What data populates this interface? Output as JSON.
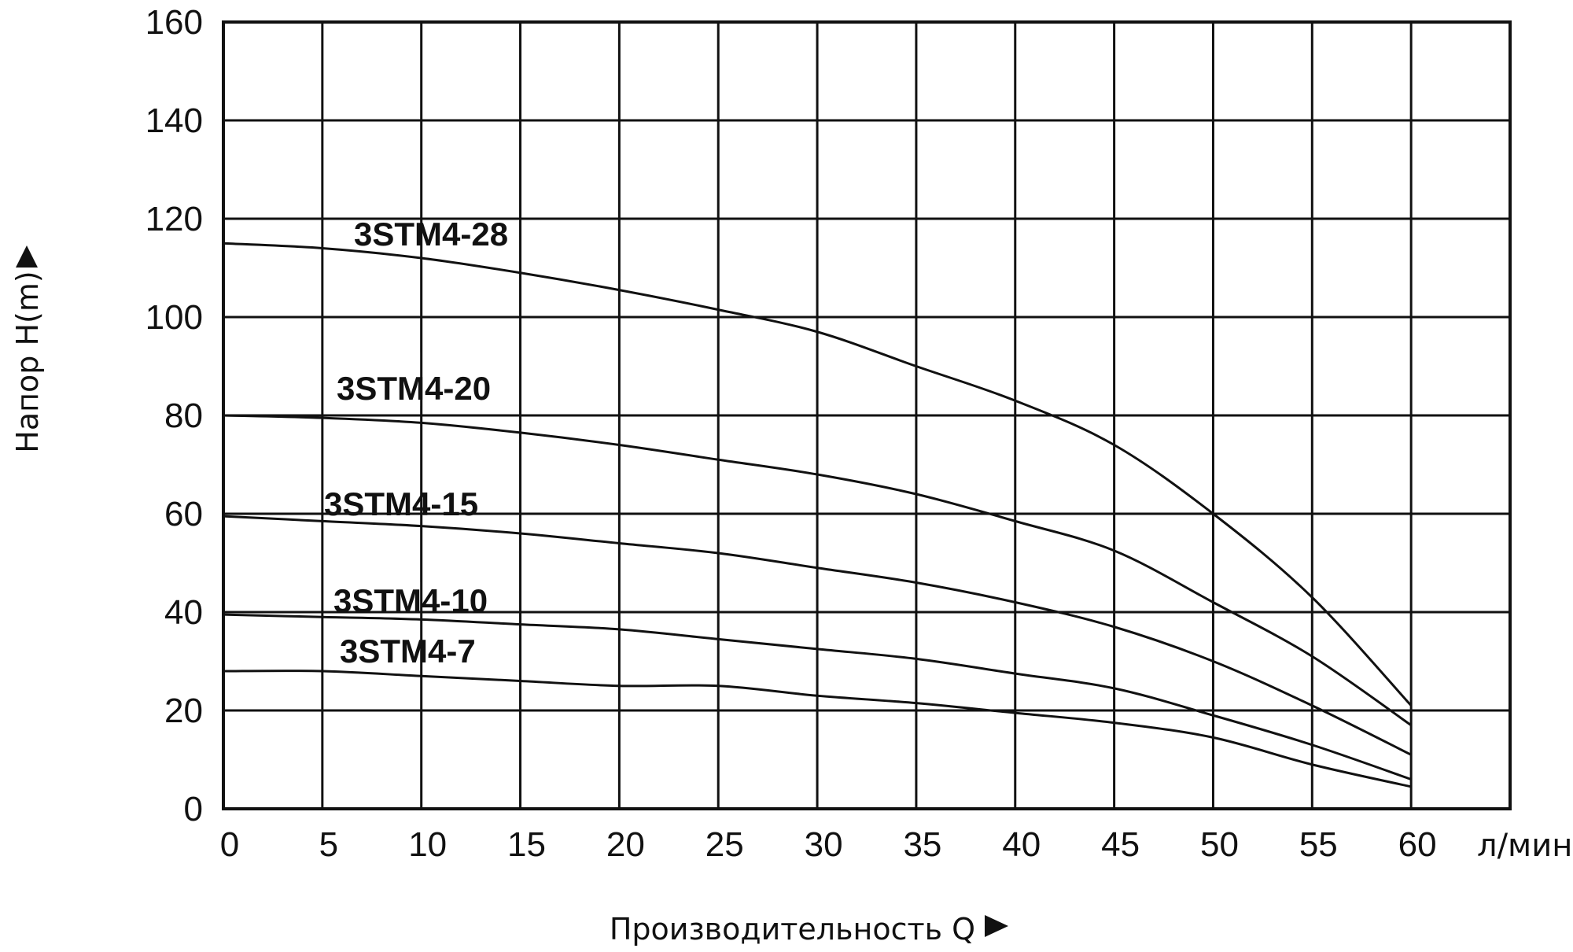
{
  "chart_data": {
    "type": "line",
    "title": "",
    "xlabel": "Производительность Q",
    "ylabel": "Напор H(m)",
    "x_unit": "л/мин",
    "xlim": [
      0,
      65
    ],
    "ylim": [
      0,
      160
    ],
    "x_ticks": [
      0,
      5,
      10,
      15,
      20,
      25,
      30,
      35,
      40,
      45,
      50,
      55,
      60
    ],
    "y_ticks": [
      0,
      20,
      40,
      60,
      80,
      100,
      120,
      140,
      160
    ],
    "grid": true,
    "legend": "inline labels",
    "series": [
      {
        "name": "3STM4-28",
        "x": [
          0,
          5,
          10,
          15,
          20,
          25,
          30,
          35,
          40,
          45,
          50,
          55,
          60
        ],
        "y": [
          115,
          114,
          112,
          109,
          105.5,
          101.5,
          97,
          90,
          83,
          74,
          60,
          43,
          21
        ]
      },
      {
        "name": "3STM4-20",
        "x": [
          0,
          5,
          10,
          15,
          20,
          25,
          30,
          35,
          40,
          45,
          50,
          55,
          60
        ],
        "y": [
          80,
          79.5,
          78.5,
          76.5,
          74,
          71,
          68,
          64,
          58.5,
          52.5,
          42,
          31,
          17
        ]
      },
      {
        "name": "3STM4-15",
        "x": [
          0,
          5,
          10,
          15,
          20,
          25,
          30,
          35,
          40,
          45,
          50,
          55,
          60
        ],
        "y": [
          59.5,
          58.5,
          57.5,
          56,
          54,
          52,
          49,
          46,
          42,
          37,
          30,
          21,
          11
        ]
      },
      {
        "name": "3STM4-10",
        "x": [
          0,
          5,
          10,
          15,
          20,
          25,
          30,
          35,
          40,
          45,
          50,
          55,
          60
        ],
        "y": [
          39.5,
          39,
          38.5,
          37.5,
          36.5,
          34.5,
          32.5,
          30.5,
          27.5,
          24.5,
          19,
          13,
          6
        ]
      },
      {
        "name": "3STM4-7",
        "x": [
          0,
          5,
          10,
          15,
          20,
          25,
          30,
          35,
          40,
          45,
          50,
          55,
          60
        ],
        "y": [
          28,
          28,
          27,
          26,
          25,
          25,
          23,
          21.5,
          19.5,
          17.5,
          14.5,
          9,
          4.5
        ]
      }
    ]
  }
}
